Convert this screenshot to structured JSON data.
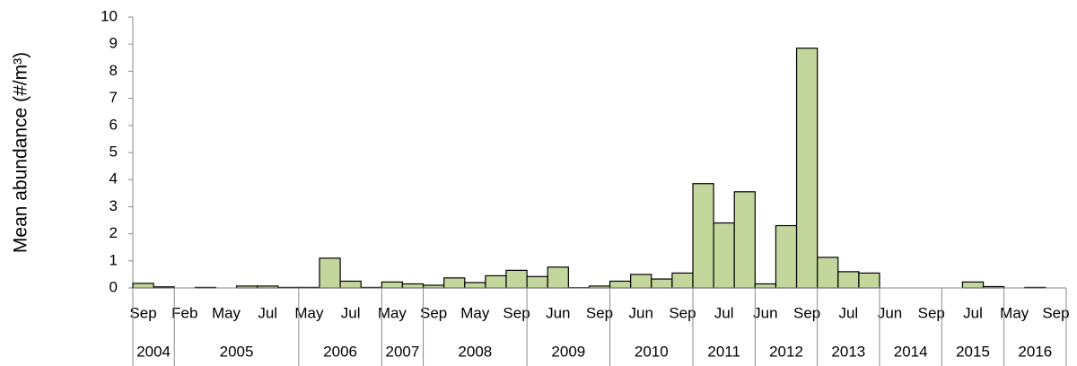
{
  "chart_data": {
    "type": "bar",
    "y_label": "Mean abundance  (#/m³)",
    "categories": [
      "Sep",
      null,
      "Feb",
      null,
      "May",
      null,
      "Jul",
      null,
      "May",
      null,
      "Jul",
      null,
      "May",
      null,
      "Sep",
      null,
      "May",
      null,
      "Sep",
      null,
      "Jun",
      null,
      "Sep",
      null,
      "Jun",
      null,
      "Sep",
      null,
      "Jul",
      null,
      "Jun",
      null,
      "Sep",
      null,
      "Jul",
      null,
      "Jun",
      null,
      "Sep",
      null,
      "Jul",
      null,
      "May",
      null,
      "Sep"
    ],
    "years": [
      "2004",
      "2004",
      "2005",
      "2005",
      "2005",
      "2005",
      "2005",
      "2005",
      "2006",
      "2006",
      "2006",
      "2006",
      "2007",
      "2007",
      "2008",
      "2008",
      "2008",
      "2008",
      "2008",
      "2009",
      "2009",
      "2009",
      "2009",
      "2010",
      "2010",
      "2010",
      "2010",
      "2011",
      "2011",
      "2011",
      "2012",
      "2012",
      "2012",
      "2013",
      "2013",
      "2013",
      "2014",
      "2014",
      "2014",
      "2015",
      "2015",
      "2015",
      "2016",
      "2016",
      "2016"
    ],
    "values": [
      0.17,
      0.04,
      null,
      0.02,
      null,
      0.07,
      0.07,
      0.02,
      0.02,
      1.1,
      0.25,
      0.02,
      0.22,
      0.15,
      0.1,
      0.37,
      0.2,
      0.45,
      0.65,
      0.42,
      0.77,
      0.01,
      0.07,
      0.25,
      0.5,
      0.33,
      0.55,
      3.85,
      2.4,
      3.55,
      0.15,
      2.3,
      8.85,
      1.13,
      0.6,
      0.55,
      null,
      null,
      null,
      null,
      0.22,
      0.05,
      null,
      0.02,
      null
    ],
    "color": "#c3d69b",
    "ylim": [
      0,
      10
    ],
    "yticks": [
      0,
      1,
      2,
      3,
      4,
      5,
      6,
      7,
      8,
      9,
      10
    ],
    "grid": false
  }
}
